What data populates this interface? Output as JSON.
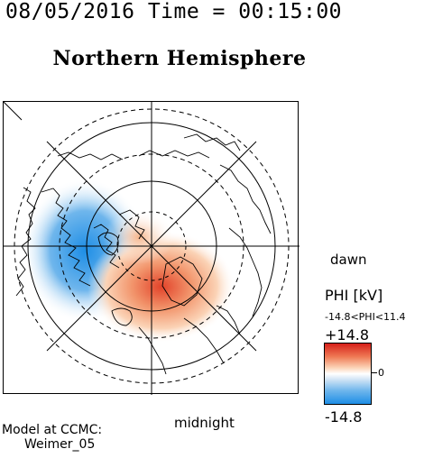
{
  "timestamp": "08/05/2016 Time = 00:15:00",
  "title": "Northern Hemisphere",
  "labels": {
    "dawn": "dawn",
    "midnight": "midnight"
  },
  "colorbar": {
    "title": "PHI [kV]",
    "range_text": "-14.8<PHI<11.4",
    "max_label": "+14.8",
    "min_label": "-14.8",
    "zero_label": "0",
    "colors": [
      "#d6201a",
      "#ef7a55",
      "#fbd3b6",
      "#ffffff",
      "#cfe3f5",
      "#6fb6ec",
      "#1e8ee6"
    ]
  },
  "model": {
    "line1": "Model at CCMC:",
    "line2": "Weimer_05"
  }
}
